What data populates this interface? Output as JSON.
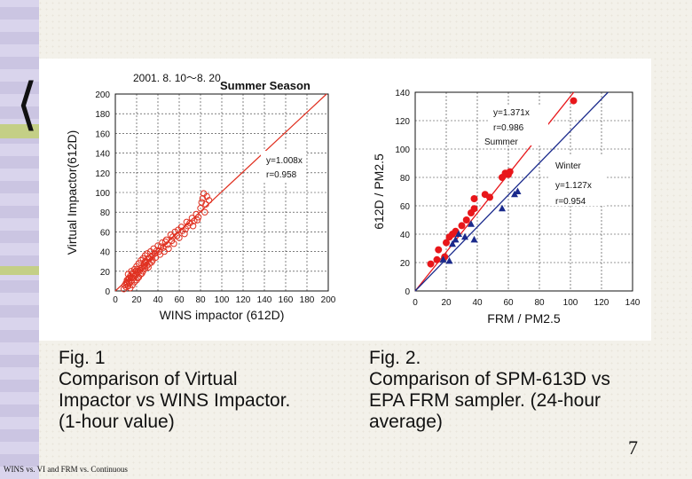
{
  "slide": {
    "page_number": "7",
    "footer_text": "WINS vs. VI and FRM vs. Continuous",
    "caption_left": "Fig. 1\nComparison of Virtual\nImpactor vs WINS Impactor.\n(1-hour value)",
    "caption_right": "Fig. 2.\nComparison of SPM-613D vs\nEPA FRM sampler. (24-hour\naverage)"
  },
  "chart_data": [
    {
      "type": "scatter",
      "title": "2001. 8. 10～8. 20",
      "subtitle": "Summer Season",
      "xlabel": "WINS impactor (612D)",
      "ylabel": "Virtual Impactor(612D)",
      "xlim": [
        0,
        200
      ],
      "ylim": [
        0,
        200
      ],
      "xticks": [
        0,
        20,
        40,
        60,
        80,
        100,
        120,
        140,
        160,
        180,
        200
      ],
      "yticks": [
        0,
        20,
        40,
        60,
        80,
        100,
        120,
        140,
        160,
        180,
        200
      ],
      "grid": true,
      "annotations": [
        "y=1.008x",
        "r=0.958"
      ],
      "colors": {
        "points": "#e03020",
        "line": "#e03020"
      },
      "series": [
        {
          "marker": "open-circle",
          "points": [
            [
              8,
              2
            ],
            [
              9,
              6
            ],
            [
              10,
              4
            ],
            [
              11,
              9
            ],
            [
              12,
              5
            ],
            [
              12,
              12
            ],
            [
              13,
              8
            ],
            [
              14,
              3
            ],
            [
              14,
              15
            ],
            [
              15,
              10
            ],
            [
              16,
              6
            ],
            [
              16,
              18
            ],
            [
              17,
              13
            ],
            [
              18,
              9
            ],
            [
              18,
              22
            ],
            [
              19,
              16
            ],
            [
              20,
              11
            ],
            [
              20,
              25
            ],
            [
              21,
              19
            ],
            [
              22,
              14
            ],
            [
              22,
              28
            ],
            [
              23,
              21
            ],
            [
              24,
              17
            ],
            [
              24,
              31
            ],
            [
              25,
              24
            ],
            [
              26,
              20
            ],
            [
              26,
              33
            ],
            [
              27,
              27
            ],
            [
              28,
              23
            ],
            [
              28,
              36
            ],
            [
              29,
              30
            ],
            [
              30,
              26
            ],
            [
              30,
              38
            ],
            [
              31,
              33
            ],
            [
              32,
              28
            ],
            [
              33,
              40
            ],
            [
              34,
              35
            ],
            [
              35,
              31
            ],
            [
              36,
              43
            ],
            [
              37,
              38
            ],
            [
              38,
              34
            ],
            [
              40,
              46
            ],
            [
              41,
              40
            ],
            [
              42,
              37
            ],
            [
              44,
              49
            ],
            [
              45,
              44
            ],
            [
              46,
              40
            ],
            [
              48,
              52
            ],
            [
              49,
              47
            ],
            [
              50,
              43
            ],
            [
              52,
              57
            ],
            [
              53,
              51
            ],
            [
              55,
              48
            ],
            [
              56,
              60
            ],
            [
              58,
              56
            ],
            [
              60,
              54
            ],
            [
              62,
              65
            ],
            [
              63,
              61
            ],
            [
              65,
              58
            ],
            [
              67,
              70
            ],
            [
              68,
              66
            ],
            [
              70,
              69
            ],
            [
              72,
              74
            ],
            [
              74,
              71
            ],
            [
              76,
              78
            ],
            [
              78,
              75
            ],
            [
              80,
              84
            ],
            [
              81,
              90
            ],
            [
              82,
              94
            ],
            [
              83,
              99
            ],
            [
              85,
              88
            ],
            [
              86,
              96
            ],
            [
              88,
              92
            ],
            [
              84,
              80
            ],
            [
              77,
              72
            ],
            [
              73,
              66
            ],
            [
              66,
              63
            ],
            [
              59,
              62
            ],
            [
              54,
              55
            ],
            [
              47,
              50
            ],
            [
              43,
              45
            ],
            [
              39,
              41
            ],
            [
              35,
              36
            ],
            [
              32,
              33
            ],
            [
              29,
              29
            ],
            [
              27,
              25
            ],
            [
              24,
              23
            ],
            [
              21,
              22
            ],
            [
              19,
              20
            ],
            [
              17,
              17
            ],
            [
              15,
              14
            ],
            [
              13,
              13
            ],
            [
              11,
              11
            ],
            [
              10,
              8
            ],
            [
              12,
              17
            ],
            [
              15,
              20
            ],
            [
              18,
              15
            ],
            [
              21,
              13
            ],
            [
              25,
              18
            ],
            [
              28,
              30
            ],
            [
              31,
              24
            ],
            [
              34,
              29
            ]
          ]
        }
      ],
      "fit": {
        "slope": 1.008
      }
    },
    {
      "type": "scatter",
      "xlabel": "FRM / PM2.5",
      "ylabel": "612D / PM2.5",
      "xlim": [
        0,
        140
      ],
      "ylim": [
        0,
        140
      ],
      "xticks": [
        0,
        20,
        40,
        60,
        80,
        100,
        120,
        140
      ],
      "yticks": [
        0,
        20,
        40,
        60,
        80,
        100,
        120,
        140
      ],
      "grid": true,
      "series": [
        {
          "name": "Summer",
          "color": "#e8161a",
          "marker": "filled-circle",
          "annotations": [
            "y=1.371x",
            "r=0.986"
          ],
          "slope": 1.371,
          "points": [
            [
              10,
              19
            ],
            [
              14,
              22
            ],
            [
              15,
              29
            ],
            [
              19,
              24
            ],
            [
              20,
              34
            ],
            [
              22,
              38
            ],
            [
              24,
              40
            ],
            [
              26,
              42
            ],
            [
              30,
              46
            ],
            [
              33,
              50
            ],
            [
              36,
              55
            ],
            [
              38,
              58
            ],
            [
              38,
              65
            ],
            [
              45,
              68
            ],
            [
              48,
              66
            ],
            [
              56,
              80
            ],
            [
              58,
              83
            ],
            [
              60,
              82
            ],
            [
              61,
              84
            ],
            [
              102,
              134
            ]
          ]
        },
        {
          "name": "Winter",
          "color": "#1a2a8c",
          "marker": "filled-triangle",
          "annotations": [
            "y=1.127x",
            "r=0.954"
          ],
          "slope": 1.127,
          "points": [
            [
              18,
              22
            ],
            [
              22,
              21
            ],
            [
              24,
              33
            ],
            [
              26,
              36
            ],
            [
              28,
              40
            ],
            [
              32,
              38
            ],
            [
              36,
              47
            ],
            [
              38,
              36
            ],
            [
              56,
              58
            ],
            [
              64,
              68
            ],
            [
              66,
              70
            ]
          ]
        }
      ]
    }
  ]
}
